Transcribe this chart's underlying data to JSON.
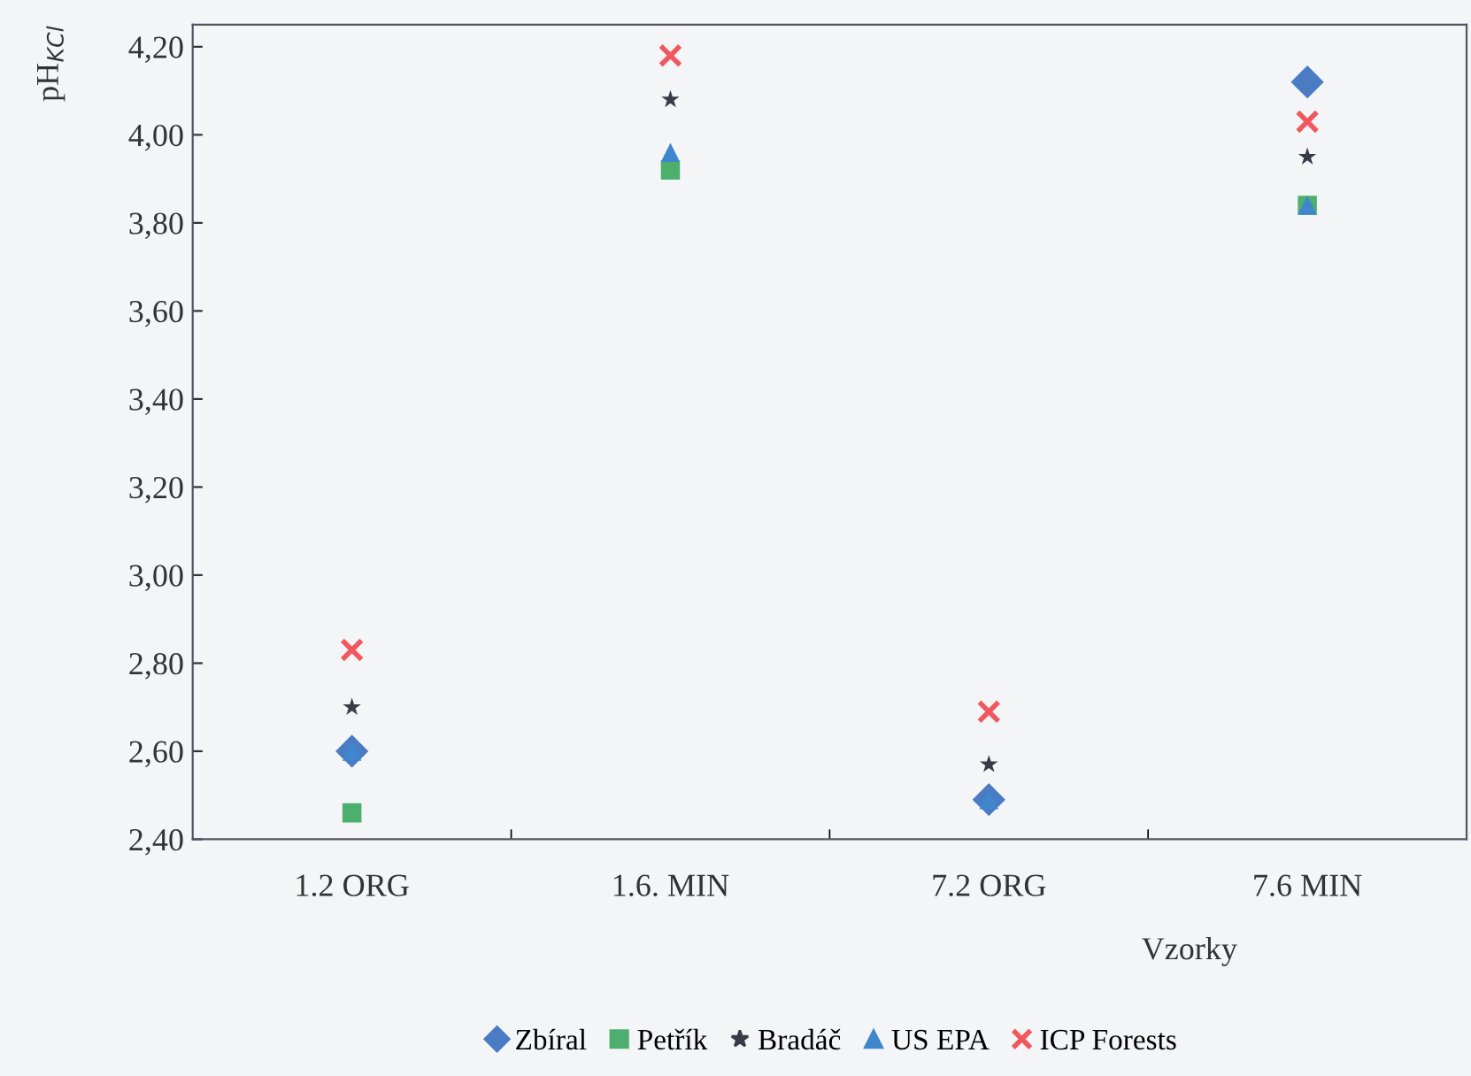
{
  "chart_data": {
    "type": "scatter",
    "xlabel": "Vzorky",
    "ylabel": "pH$_{KCl}$",
    "categories": [
      "1.2 ORG",
      "1.6. MIN",
      "7.2 ORG",
      "7.6 MIN"
    ],
    "series": [
      {
        "name": "Zbíral",
        "color": "#4a7cc4",
        "marker": "diamond",
        "values": [
          2.6,
          null,
          2.49,
          4.12
        ]
      },
      {
        "name": "Petřík",
        "color": "#4caf6e",
        "marker": "square",
        "values": [
          2.46,
          3.92,
          null,
          3.84
        ]
      },
      {
        "name": "Bradáč",
        "color": "#3a3a48",
        "marker": "star",
        "values": [
          2.7,
          4.08,
          2.57,
          3.95
        ]
      },
      {
        "name": "US EPA",
        "color": "#3f86cc",
        "marker": "triangle",
        "values": [
          2.6,
          3.96,
          2.49,
          3.84
        ]
      },
      {
        "name": "ICP Forests",
        "color": "#f0585e",
        "marker": "cross",
        "values": [
          2.83,
          4.18,
          2.69,
          4.03
        ]
      }
    ],
    "ylim": [
      2.4,
      4.25
    ],
    "yticks": [
      {
        "value": 2.4,
        "label": "2,40"
      },
      {
        "value": 2.6,
        "label": "2,60"
      },
      {
        "value": 2.8,
        "label": "2,80"
      },
      {
        "value": 3.0,
        "label": "3,00"
      },
      {
        "value": 3.2,
        "label": "3,20"
      },
      {
        "value": 3.4,
        "label": "3,40"
      },
      {
        "value": 3.6,
        "label": "3,60"
      },
      {
        "value": 3.8,
        "label": "3,80"
      },
      {
        "value": 4.0,
        "label": "4,00"
      },
      {
        "value": 4.2,
        "label": "4,20"
      }
    ],
    "grid": false,
    "legend": "bottom"
  }
}
